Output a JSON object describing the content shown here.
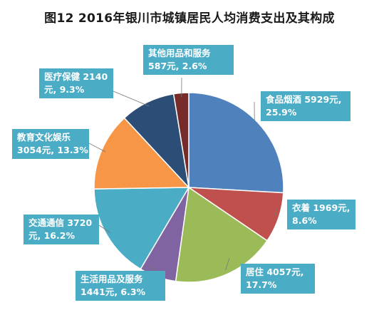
{
  "title": "图12   2016年银川市城镇居民人均消费支出及其构成",
  "chart_data": {
    "type": "pie",
    "title": "图12   2016年银川市城镇居民人均消费支出及其构成",
    "unit": "元",
    "slices": [
      {
        "name": "食品烟酒",
        "value": 5929,
        "percent": 25.9,
        "color": "#4f81bd",
        "label_line1": "食品烟酒 5929元,",
        "label_line2": "25.9%"
      },
      {
        "name": "衣着",
        "value": 1969,
        "percent": 8.6,
        "color": "#c0504d",
        "label_line1": "衣着 1969元,",
        "label_line2": "8.6%"
      },
      {
        "name": "居住",
        "value": 4057,
        "percent": 17.7,
        "color": "#9bbb59",
        "label_line1": "居住 4057元,",
        "label_line2": "17.7%"
      },
      {
        "name": "生活用品及服务",
        "value": 1441,
        "percent": 6.3,
        "color": "#8064a2",
        "label_line1": "生活用品及服务",
        "label_line2": "1441元, 6.3%"
      },
      {
        "name": "交通通信",
        "value": 3720,
        "percent": 16.2,
        "color": "#4bacc6",
        "label_line1": "交通通信 3720",
        "label_line2": "元, 16.2%"
      },
      {
        "name": "教育文化娱乐",
        "value": 3054,
        "percent": 13.3,
        "color": "#f79646",
        "label_line1": "教育文化娱乐",
        "label_line2": "3054元, 13.3%"
      },
      {
        "name": "医疗保健",
        "value": 2140,
        "percent": 9.3,
        "color": "#2c4d75",
        "label_line1": "医疗保健 2140",
        "label_line2": "元, 9.3%"
      },
      {
        "name": "其他用品和服务",
        "value": 587,
        "percent": 2.6,
        "color": "#772c2a",
        "label_line1": "其他用品和服务",
        "label_line2": "587元, 2.6%"
      }
    ],
    "start_angle_deg": 0,
    "direction": "clockwise",
    "label_style": "callout boxes with leader lines"
  }
}
